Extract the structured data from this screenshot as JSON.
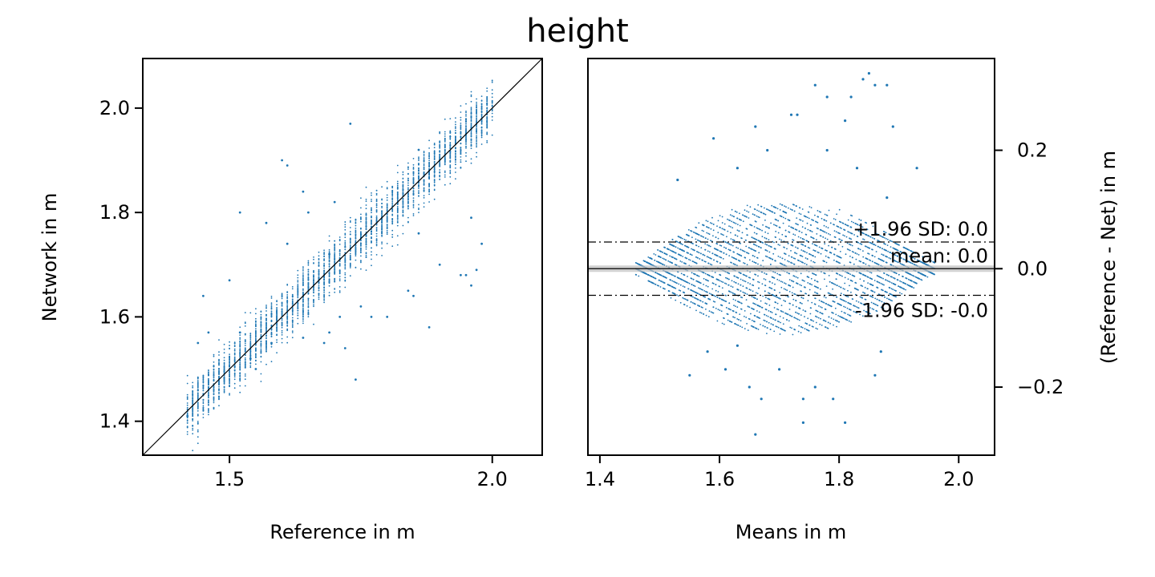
{
  "title": "height",
  "chart_data": [
    {
      "type": "scatter",
      "name": "scatter",
      "xlabel": "Reference in m",
      "ylabel": "Network in m",
      "xlim": [
        1.335,
        2.095
      ],
      "ylim": [
        1.335,
        2.095
      ],
      "xticks": [
        1.5,
        2.0
      ],
      "xtick_labels": [
        "1.5",
        "2.0"
      ],
      "yticks": [
        1.4,
        1.6,
        1.8,
        2.0
      ],
      "ytick_labels": [
        "1.4",
        "1.6",
        "1.8",
        "2.0"
      ],
      "identity_line": true,
      "grid": false,
      "marker_color": "#1f77b4",
      "dense_band": {
        "x_from": 1.42,
        "x_to": 2.0,
        "spread_y": 0.045,
        "level_step": 0.01,
        "count": 3200
      },
      "outliers": [
        [
          1.5,
          1.67
        ],
        [
          1.45,
          1.64
        ],
        [
          1.61,
          1.89
        ],
        [
          1.64,
          1.84
        ],
        [
          1.6,
          1.9
        ],
        [
          1.73,
          1.97
        ],
        [
          1.52,
          1.8
        ],
        [
          1.57,
          1.78
        ],
        [
          1.86,
          1.76
        ],
        [
          1.96,
          1.79
        ],
        [
          1.98,
          1.74
        ],
        [
          1.9,
          1.7
        ],
        [
          1.94,
          1.68
        ],
        [
          1.95,
          1.68
        ],
        [
          1.97,
          1.69
        ],
        [
          1.96,
          1.66
        ],
        [
          1.84,
          1.65
        ],
        [
          1.85,
          1.64
        ],
        [
          1.75,
          1.62
        ],
        [
          1.77,
          1.6
        ],
        [
          1.8,
          1.6
        ],
        [
          1.88,
          1.58
        ],
        [
          1.69,
          1.57
        ],
        [
          1.71,
          1.6
        ],
        [
          1.64,
          1.56
        ],
        [
          1.68,
          1.55
        ],
        [
          1.58,
          1.55
        ],
        [
          1.54,
          1.52
        ],
        [
          1.52,
          1.57
        ],
        [
          1.55,
          1.5
        ],
        [
          1.69,
          1.72
        ],
        [
          1.61,
          1.74
        ],
        [
          1.65,
          1.8
        ],
        [
          1.7,
          1.82
        ],
        [
          1.86,
          1.92
        ],
        [
          1.72,
          1.54
        ],
        [
          1.74,
          1.48
        ],
        [
          1.44,
          1.55
        ],
        [
          1.46,
          1.57
        ],
        [
          1.42,
          1.41
        ]
      ]
    },
    {
      "type": "scatter",
      "name": "bland-altman",
      "xlabel": "Means in m",
      "ylabel": "(Reference - Net) in m",
      "ylabel_side": "right",
      "xlim": [
        1.38,
        2.06
      ],
      "ylim": [
        -0.315,
        0.355
      ],
      "xticks": [
        1.4,
        1.6,
        1.8,
        2.0
      ],
      "xtick_labels": [
        "1.4",
        "1.6",
        "1.8",
        "2.0"
      ],
      "yticks": [
        -0.2,
        0.0,
        0.2
      ],
      "ytick_labels": [
        "−0.2",
        "0.0",
        "0.2"
      ],
      "grid": false,
      "marker_color": "#1f77b4",
      "lines": [
        {
          "label": "+1.96 SD: 0.0",
          "y": 0.045,
          "style": "dashdot"
        },
        {
          "label": "mean: 0.0",
          "y": 0.0,
          "style": "solid"
        },
        {
          "label": "-1.96 SD: -0.0",
          "y": -0.045,
          "style": "dashdot"
        }
      ],
      "dense_band": {
        "x_from": 1.46,
        "x_to": 1.96,
        "peak_spread": 0.11,
        "count": 3400
      },
      "outliers": [
        [
          1.76,
          0.31
        ],
        [
          1.84,
          0.32
        ],
        [
          1.86,
          0.31
        ],
        [
          1.85,
          0.33
        ],
        [
          1.88,
          0.31
        ],
        [
          1.78,
          0.29
        ],
        [
          1.82,
          0.29
        ],
        [
          1.81,
          0.25
        ],
        [
          1.89,
          0.24
        ],
        [
          1.66,
          0.24
        ],
        [
          1.72,
          0.26
        ],
        [
          1.73,
          0.26
        ],
        [
          1.59,
          0.22
        ],
        [
          1.68,
          0.2
        ],
        [
          1.63,
          0.17
        ],
        [
          1.78,
          0.2
        ],
        [
          1.83,
          0.17
        ],
        [
          1.93,
          0.17
        ],
        [
          1.88,
          0.12
        ],
        [
          1.53,
          0.15
        ],
        [
          1.63,
          -0.13
        ],
        [
          1.58,
          -0.14
        ],
        [
          1.7,
          -0.17
        ],
        [
          1.65,
          -0.2
        ],
        [
          1.76,
          -0.2
        ],
        [
          1.74,
          -0.22
        ],
        [
          1.79,
          -0.22
        ],
        [
          1.81,
          -0.26
        ],
        [
          1.74,
          -0.26
        ],
        [
          1.67,
          -0.22
        ],
        [
          1.66,
          -0.28
        ],
        [
          1.55,
          -0.18
        ],
        [
          1.61,
          -0.17
        ],
        [
          1.86,
          -0.18
        ],
        [
          1.87,
          -0.14
        ]
      ]
    }
  ]
}
